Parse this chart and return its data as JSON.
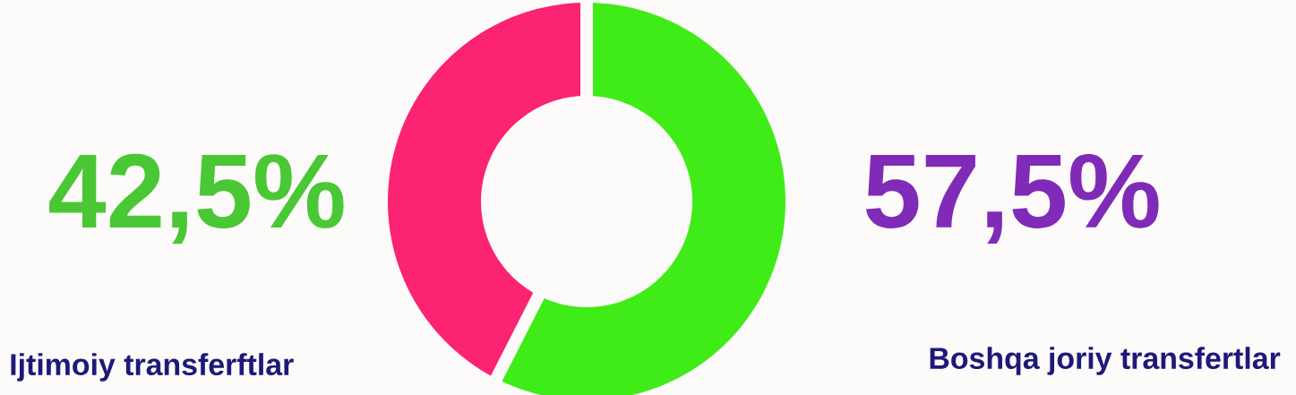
{
  "chart_data": {
    "type": "donut",
    "categories": [
      "Ijtimoiy transferftlar",
      "Boshqa joriy transfertlar"
    ],
    "values": [
      42.5,
      57.5
    ],
    "colors": [
      "#fb2372",
      "#3fec17"
    ],
    "value_labels": [
      "42,5%",
      "57,5%"
    ]
  }
}
